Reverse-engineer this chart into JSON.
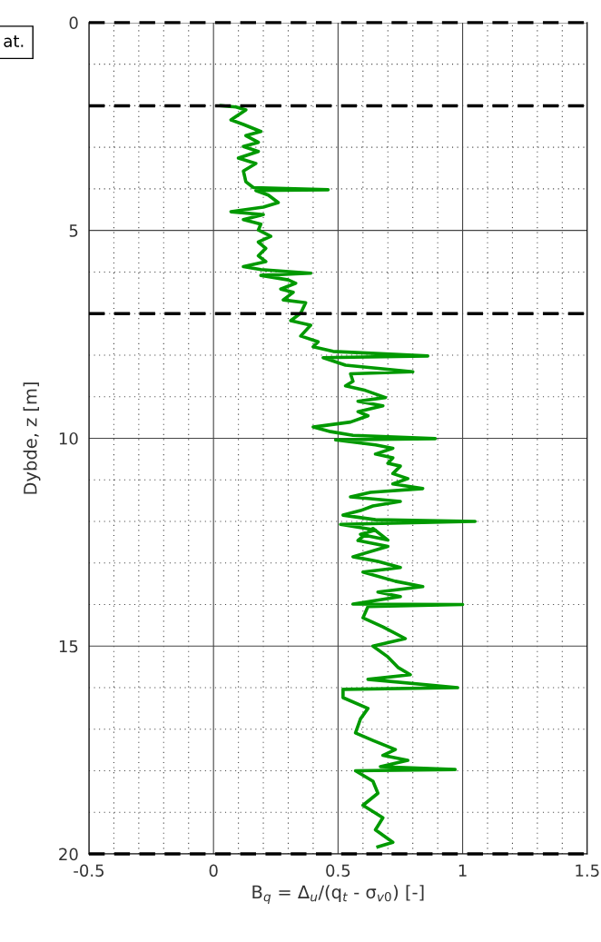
{
  "chart_data": {
    "type": "line",
    "xlabel": "B$_{q}$ = Δ$_{u}$/(q$_{t}$ - σ$_{v0}$) [-]",
    "ylabel": "Dybde, z [m]",
    "xlim": [
      -0.5,
      1.5
    ],
    "xticks": [
      -0.5,
      0,
      0.5,
      1,
      1.5
    ],
    "ylim": [
      20,
      0
    ],
    "yticks": [
      0,
      5,
      10,
      15,
      20
    ],
    "grid": true,
    "series": [
      {
        "color": "#009900",
        "line_style": "solid",
        "marker": "none",
        "x": [
          0.03,
          0.09,
          0.13,
          0.07,
          0.12,
          0.19,
          0.13,
          0.18,
          0.12,
          0.18,
          0.1,
          0.17,
          0.12,
          0.13,
          0.16,
          0.46,
          0.17,
          0.22,
          0.26,
          0.2,
          0.07,
          0.2,
          0.12,
          0.19,
          0.18,
          0.23,
          0.18,
          0.21,
          0.18,
          0.21,
          0.12,
          0.19,
          0.39,
          0.19,
          0.3,
          0.33,
          0.27,
          0.32,
          0.28,
          0.37,
          0.35,
          0.31,
          0.39,
          0.35,
          0.42,
          0.4,
          0.48,
          0.86,
          0.44,
          0.53,
          0.8,
          0.55,
          0.56,
          0.53,
          0.61,
          0.69,
          0.58,
          0.68,
          0.58,
          0.62,
          0.55,
          0.4,
          0.47,
          0.56,
          0.89,
          0.49,
          0.65,
          0.72,
          0.65,
          0.72,
          0.7,
          0.75,
          0.72,
          0.78,
          0.72,
          0.84,
          0.63,
          0.55,
          0.75,
          0.64,
          0.59,
          0.52,
          0.65,
          1.05,
          0.51,
          0.65,
          0.59,
          0.7,
          0.64,
          0.58,
          0.7,
          0.56,
          0.66,
          0.75,
          0.6,
          0.73,
          0.84,
          0.66,
          0.75,
          0.56,
          1.0,
          0.62,
          0.6,
          0.68,
          0.77,
          0.64,
          0.7,
          0.74,
          0.79,
          0.62,
          0.98,
          0.52,
          0.52,
          0.62,
          0.59,
          0.57,
          0.64,
          0.73,
          0.68,
          0.78,
          0.67,
          0.97,
          0.57,
          0.64,
          0.66,
          0.6,
          0.68,
          0.65,
          0.72,
          0.66
        ],
        "values": [
          2.0,
          2.03,
          2.1,
          2.34,
          2.45,
          2.62,
          2.72,
          2.88,
          2.98,
          3.1,
          3.26,
          3.39,
          3.57,
          3.83,
          3.97,
          4.02,
          4.04,
          4.15,
          4.33,
          4.44,
          4.55,
          4.62,
          4.74,
          4.85,
          4.99,
          5.14,
          5.28,
          5.43,
          5.61,
          5.75,
          5.87,
          5.94,
          6.03,
          6.08,
          6.19,
          6.27,
          6.41,
          6.49,
          6.67,
          6.74,
          6.99,
          7.17,
          7.28,
          7.54,
          7.68,
          7.8,
          7.91,
          8.02,
          8.06,
          8.24,
          8.4,
          8.45,
          8.63,
          8.74,
          8.85,
          9.02,
          9.11,
          9.22,
          9.36,
          9.46,
          9.61,
          9.73,
          9.84,
          9.93,
          10.01,
          10.04,
          10.16,
          10.24,
          10.38,
          10.47,
          10.6,
          10.67,
          10.85,
          10.97,
          11.1,
          11.21,
          11.3,
          11.41,
          11.52,
          11.63,
          11.74,
          11.85,
          11.96,
          12.0,
          12.07,
          12.21,
          12.31,
          12.45,
          12.17,
          12.46,
          12.6,
          12.85,
          12.96,
          13.11,
          13.22,
          13.44,
          13.57,
          13.7,
          13.81,
          13.99,
          14.0,
          14.05,
          14.32,
          14.54,
          14.82,
          15.0,
          15.26,
          15.51,
          15.69,
          15.8,
          16.0,
          16.04,
          16.24,
          16.5,
          16.75,
          17.09,
          17.27,
          17.49,
          17.63,
          17.75,
          17.9,
          17.97,
          18.0,
          18.25,
          18.54,
          18.83,
          19.13,
          19.42,
          19.72,
          19.83
        ]
      }
    ],
    "ref_lines": [
      {
        "axis": "y",
        "value": 0,
        "color": "#000000",
        "line_style": "dashed"
      },
      {
        "axis": "y",
        "value": 2,
        "color": "#000000",
        "line_style": "dashed"
      },
      {
        "axis": "y",
        "value": 7,
        "color": "#000000",
        "line_style": "dashed"
      },
      {
        "axis": "y",
        "value": 20,
        "color": "#000000",
        "line_style": "dashed"
      }
    ],
    "annotations": [
      "at."
    ]
  }
}
